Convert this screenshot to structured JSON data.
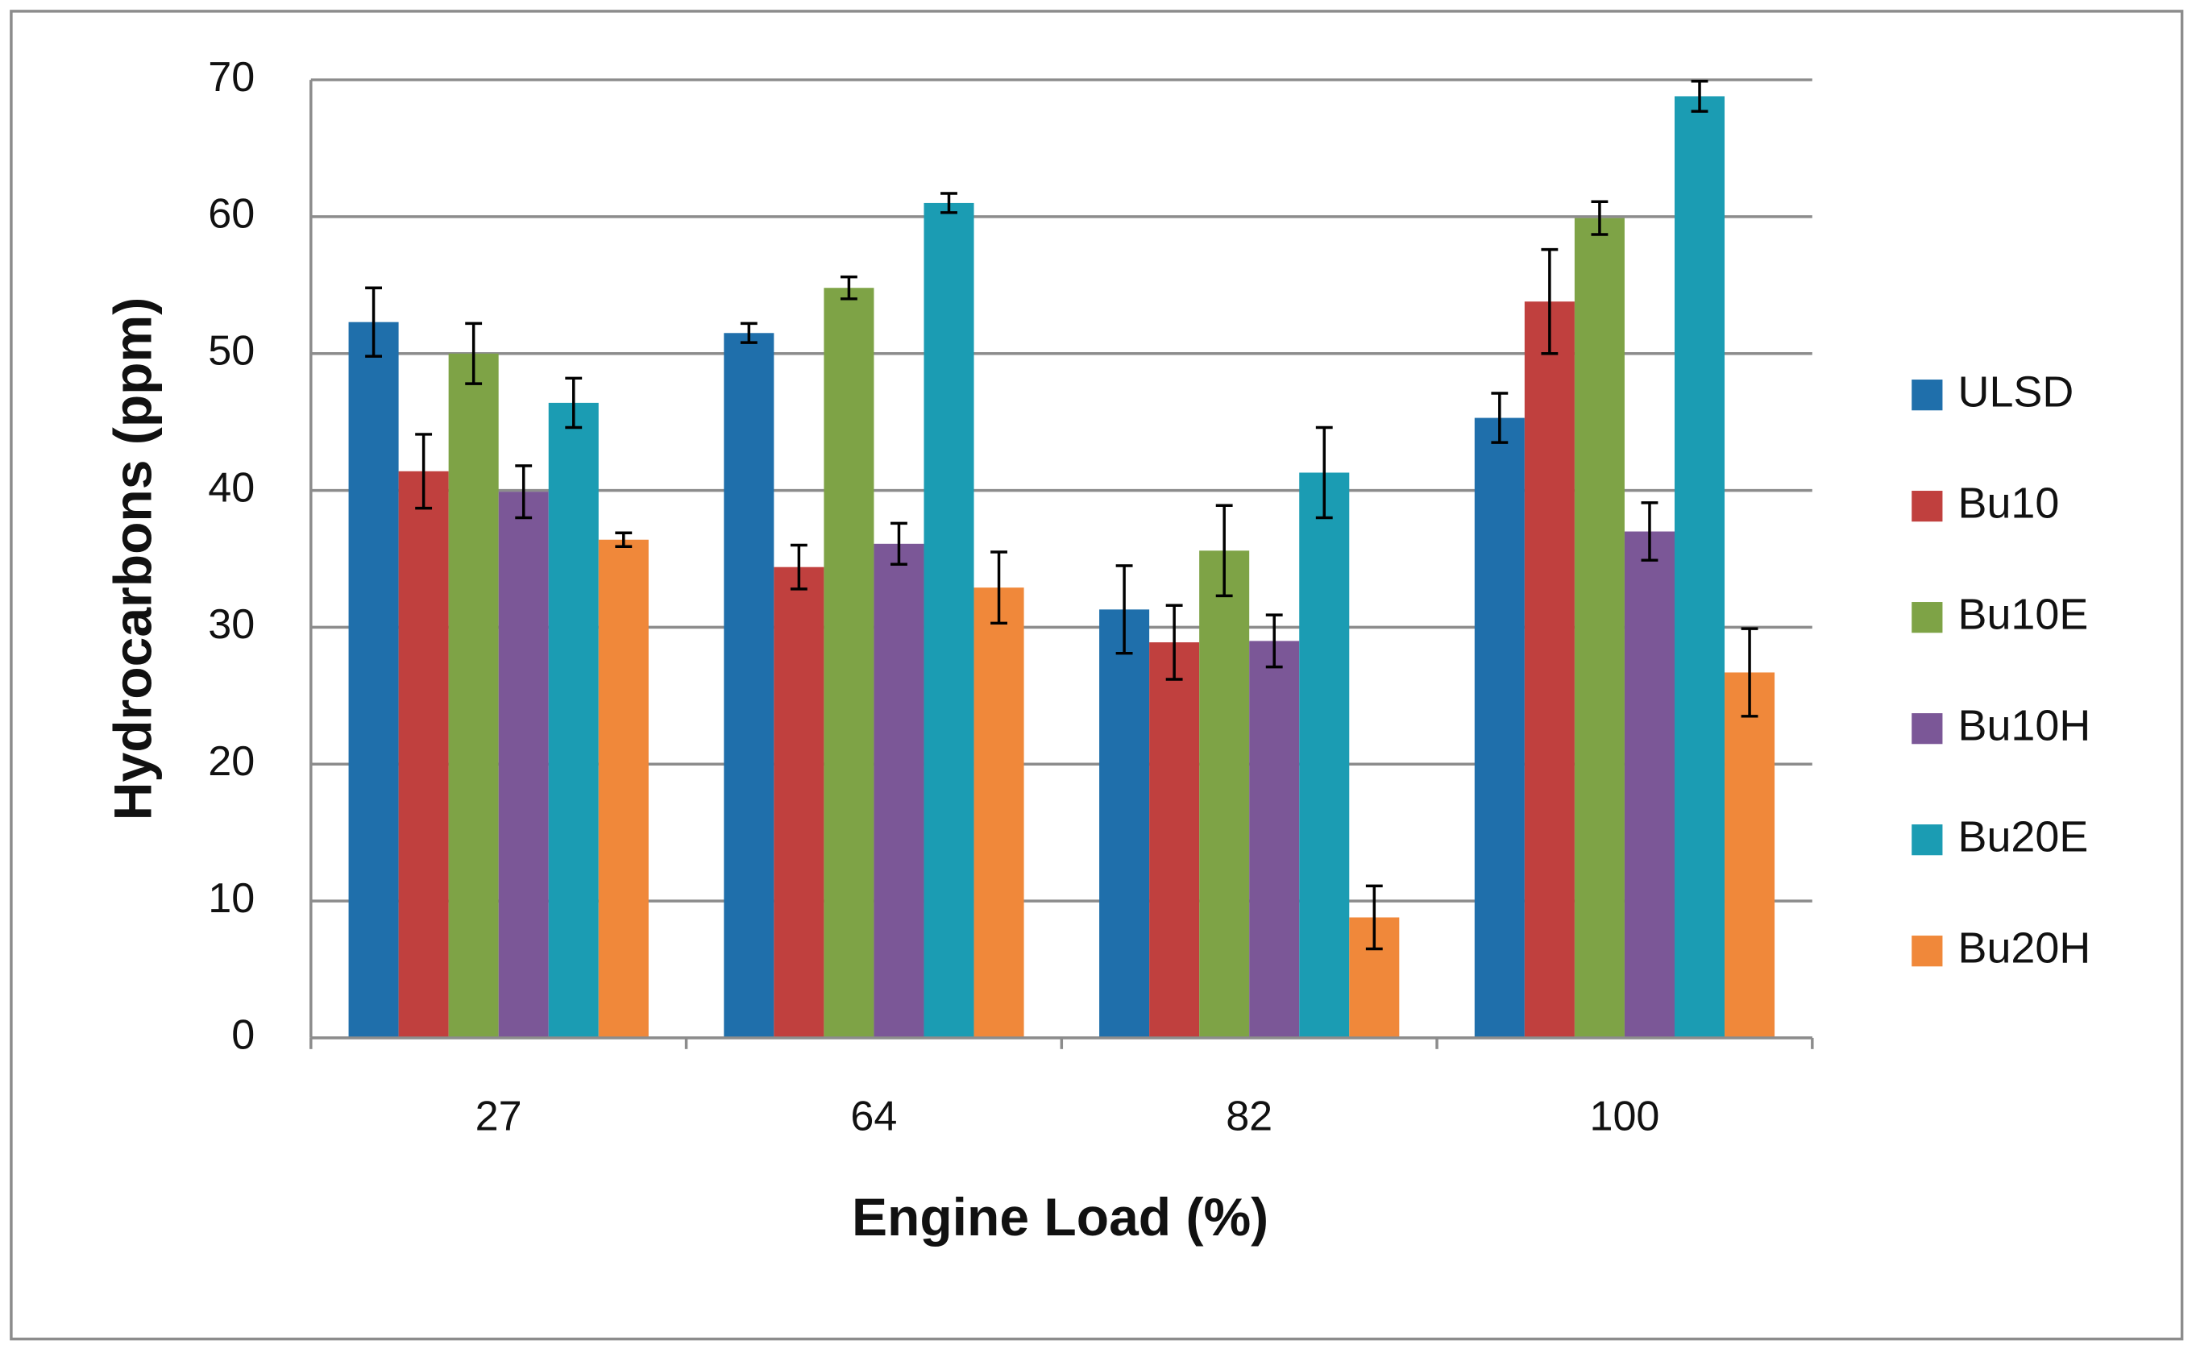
{
  "chart_data": {
    "type": "bar",
    "x_label": "Engine Load (%)",
    "y_label": "Hydrocarbons (ppm)",
    "categories": [
      "27",
      "64",
      "82",
      "100"
    ],
    "series": [
      {
        "name": "ULSD",
        "color": "#1f6fab",
        "values": [
          52.3,
          51.5,
          31.3,
          45.3
        ],
        "errors": [
          2.5,
          0.7,
          3.2,
          1.8
        ]
      },
      {
        "name": "Bu10",
        "color": "#c0403e",
        "values": [
          41.4,
          34.4,
          28.9,
          53.8
        ],
        "errors": [
          2.7,
          1.6,
          2.7,
          3.8
        ]
      },
      {
        "name": "Bu10E",
        "color": "#7ea346",
        "values": [
          50.0,
          54.8,
          35.6,
          59.9
        ],
        "errors": [
          2.2,
          0.8,
          3.3,
          1.2
        ]
      },
      {
        "name": "Bu10H",
        "color": "#7b5797",
        "values": [
          39.9,
          36.1,
          29.0,
          37.0
        ],
        "errors": [
          1.9,
          1.5,
          1.9,
          2.1
        ]
      },
      {
        "name": "Bu20E",
        "color": "#1b9cb3",
        "values": [
          46.4,
          61.0,
          41.3,
          68.8
        ],
        "errors": [
          1.8,
          0.7,
          3.3,
          1.1
        ]
      },
      {
        "name": "Bu20H",
        "color": "#f0883a",
        "values": [
          36.4,
          32.9,
          8.8,
          26.7
        ],
        "errors": [
          0.5,
          2.6,
          2.3,
          3.2
        ]
      }
    ],
    "ylim": [
      0,
      70
    ],
    "yticks": [
      0,
      10,
      20,
      30,
      40,
      50,
      60,
      70
    ],
    "grid": true,
    "legend": "right"
  }
}
